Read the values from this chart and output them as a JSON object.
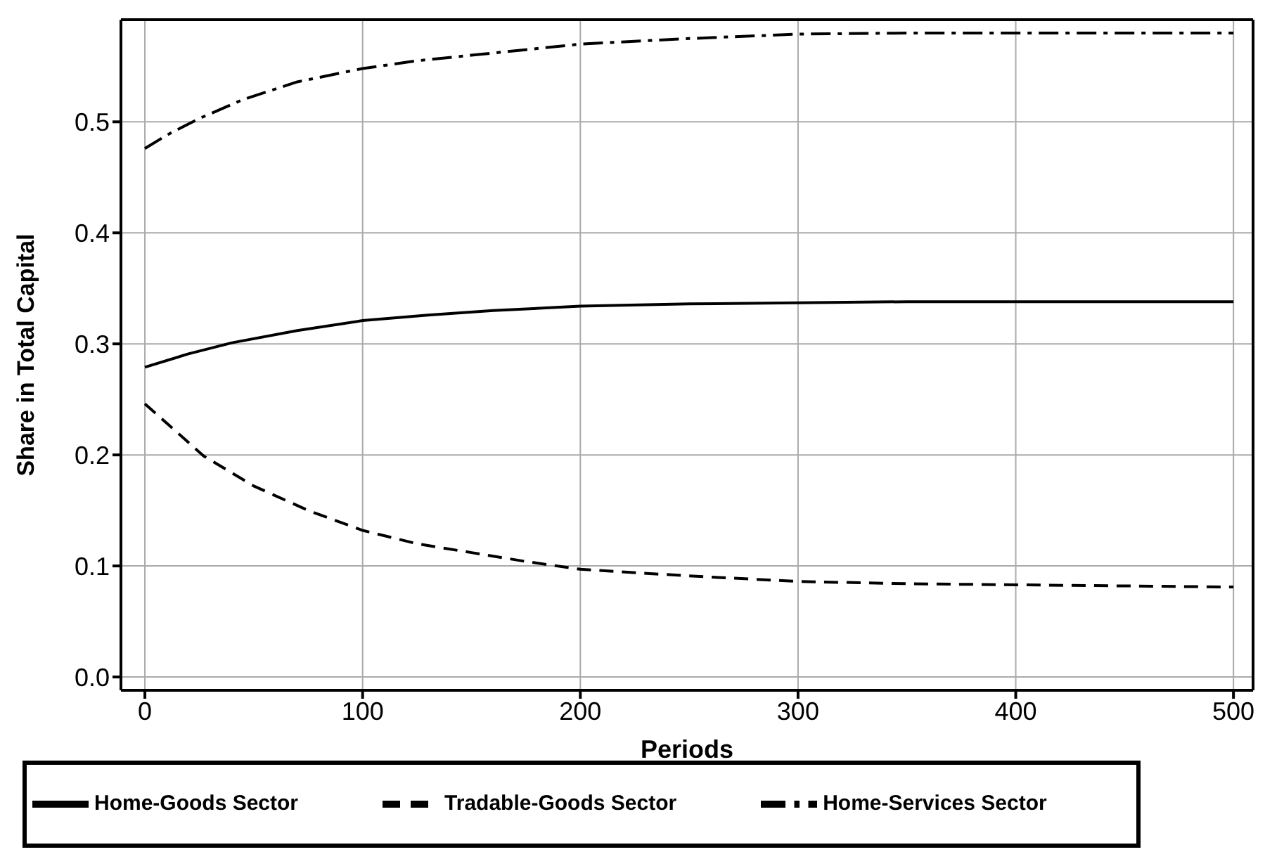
{
  "chart_data": {
    "type": "line",
    "xlabel": "Periods",
    "ylabel": "Share in Total Capital",
    "xlim": [
      -11,
      509
    ],
    "xticks": [
      0,
      100,
      200,
      300,
      400,
      500
    ],
    "ylim": [
      -0.012,
      0.592
    ],
    "yticks": [
      {
        "value": 0,
        "label": "0.0"
      },
      0.1,
      0.2,
      0.3,
      0.4,
      0.5
    ],
    "grid": true,
    "legend": "bottom",
    "marker": "none",
    "series": [
      {
        "name": "Home-Goods Sector",
        "color": "#000000",
        "line_style": "solid",
        "x": [
          0,
          20,
          40,
          70,
          100,
          130,
          160,
          200,
          250,
          300,
          350,
          400,
          450,
          500
        ],
        "values": [
          0.279,
          0.291,
          0.301,
          0.312,
          0.321,
          0.326,
          0.33,
          0.334,
          0.336,
          0.337,
          0.338,
          0.338,
          0.338,
          0.338
        ]
      },
      {
        "name": "Tradable-Goods Sector",
        "color": "#000000",
        "line_style": "dashed",
        "x": [
          0,
          15,
          27,
          50,
          75,
          100,
          125,
          150,
          175,
          200,
          250,
          300,
          350,
          400,
          450,
          500
        ],
        "values": [
          0.246,
          0.22,
          0.199,
          0.172,
          0.15,
          0.132,
          0.12,
          0.112,
          0.104,
          0.097,
          0.091,
          0.086,
          0.084,
          0.083,
          0.082,
          0.081
        ]
      },
      {
        "name": "Home-Services Sector",
        "color": "#000000",
        "line_style": "dashdot",
        "x": [
          0,
          10,
          25,
          45,
          70,
          100,
          125,
          150,
          175,
          200,
          250,
          300,
          350,
          400,
          450,
          500
        ],
        "values": [
          0.476,
          0.488,
          0.503,
          0.52,
          0.536,
          0.548,
          0.555,
          0.56,
          0.565,
          0.57,
          0.575,
          0.579,
          0.58,
          0.58,
          0.58,
          0.58
        ]
      }
    ]
  }
}
